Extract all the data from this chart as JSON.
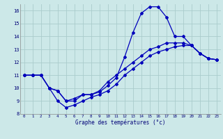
{
  "title": "Graphe des températures (°c)",
  "bg_color": "#cce8e8",
  "grid_color": "#aacccc",
  "line_color": "#0000bb",
  "line1_y": [
    11,
    11,
    11,
    10,
    9.8,
    9.0,
    9.0,
    9.5,
    9.5,
    9.7,
    10.2,
    10.8,
    12.4,
    14.3,
    15.8,
    16.3,
    16.3,
    15.5,
    14.0,
    14.0,
    13.3,
    12.7,
    12.3,
    12.2
  ],
  "line2_y": [
    11,
    11,
    11,
    10,
    9.8,
    9.0,
    9.2,
    9.5,
    9.5,
    9.8,
    10.5,
    11.0,
    11.5,
    12.0,
    12.5,
    13.0,
    13.2,
    13.5,
    13.5,
    13.5,
    13.3,
    12.7,
    12.3,
    12.2
  ],
  "line3_y": [
    11,
    11,
    11,
    10,
    9.0,
    8.5,
    8.7,
    9.0,
    9.3,
    9.5,
    9.8,
    10.3,
    11.0,
    11.5,
    12.0,
    12.5,
    12.8,
    13.0,
    13.2,
    13.3,
    13.3,
    12.7,
    12.3,
    12.2
  ],
  "ylim": [
    8,
    16.5
  ],
  "xlim": [
    -0.5,
    23.5
  ],
  "yticks": [
    8,
    9,
    10,
    11,
    12,
    13,
    14,
    15,
    16
  ],
  "xticks": [
    0,
    1,
    2,
    3,
    4,
    5,
    6,
    7,
    8,
    9,
    10,
    11,
    12,
    13,
    14,
    15,
    16,
    17,
    18,
    19,
    20,
    21,
    22,
    23
  ]
}
